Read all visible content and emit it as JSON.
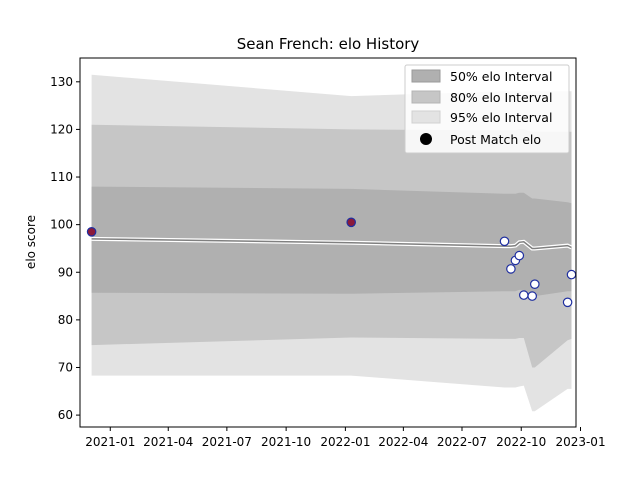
{
  "chart_data": {
    "type": "line",
    "title": "Sean French: elo History",
    "xlabel": "",
    "ylabel": "elo score",
    "ylim": [
      57.5,
      135
    ],
    "xlim": [
      "2020-11-15",
      "2022-12-25"
    ],
    "y_ticks": [
      60,
      70,
      80,
      90,
      100,
      110,
      120,
      130
    ],
    "x_ticks": [
      "2021-01",
      "2021-04",
      "2021-07",
      "2021-10",
      "2022-01",
      "2022-04",
      "2022-07",
      "2022-10",
      "2023-01"
    ],
    "grid": false,
    "legend_position": "top-right",
    "colors": {
      "band50": "#b0b0b0",
      "band80": "#c6c6c6",
      "band95": "#e3e3e3",
      "mean_line": "#808080",
      "mean_halo": "#ffffff",
      "marker_edge": "#1f2fa0",
      "marker_fill_first": "#8b1a3a",
      "marker_fill_other": "#ffffff"
    },
    "legend": [
      {
        "label": "50% elo Interval",
        "swatch": "band50"
      },
      {
        "label": "80% elo Interval",
        "swatch": "band80"
      },
      {
        "label": "95% elo Interval",
        "swatch": "band95"
      },
      {
        "label": "Post Match elo",
        "swatch": "marker"
      }
    ],
    "x": [
      "2020-12-03",
      "2022-01-10",
      "2022-09-05",
      "2022-09-15",
      "2022-09-22",
      "2022-09-28",
      "2022-10-05",
      "2022-10-18",
      "2022-10-22",
      "2022-12-12",
      "2022-12-18"
    ],
    "series": [
      {
        "name": "Post Match elo",
        "values": [
          98.5,
          100.5,
          96.5,
          90.7,
          92.5,
          93.5,
          85.2,
          85.0,
          87.5,
          83.7,
          89.5
        ]
      }
    ],
    "mean": [
      97.0,
      96.2,
      95.5,
      95.5,
      95.6,
      96.3,
      96.4,
      95.0,
      95.0,
      95.6,
      95.2
    ],
    "band50": {
      "upper": [
        108,
        107.5,
        106.5,
        106.5,
        106.5,
        106.7,
        106.7,
        105.5,
        105.5,
        104.7,
        104.5
      ],
      "lower": [
        85.7,
        85.5,
        86,
        86,
        86,
        86.3,
        86.3,
        85,
        85,
        86,
        86
      ]
    },
    "band80": {
      "upper": [
        121,
        120,
        119.8,
        119.8,
        119.8,
        120,
        120,
        119.5,
        119.5,
        119.5,
        119.5
      ],
      "lower": [
        74.7,
        76.3,
        76,
        76,
        76,
        76.2,
        76.2,
        70,
        70,
        75.7,
        76
      ]
    },
    "band95": {
      "upper": [
        131.5,
        127,
        128,
        128,
        128,
        128,
        128,
        128,
        128,
        128,
        128
      ],
      "lower": [
        68.3,
        68.3,
        65.8,
        65.8,
        65.8,
        66,
        66.2,
        60.8,
        60.8,
        65.5,
        65.5
      ]
    }
  }
}
